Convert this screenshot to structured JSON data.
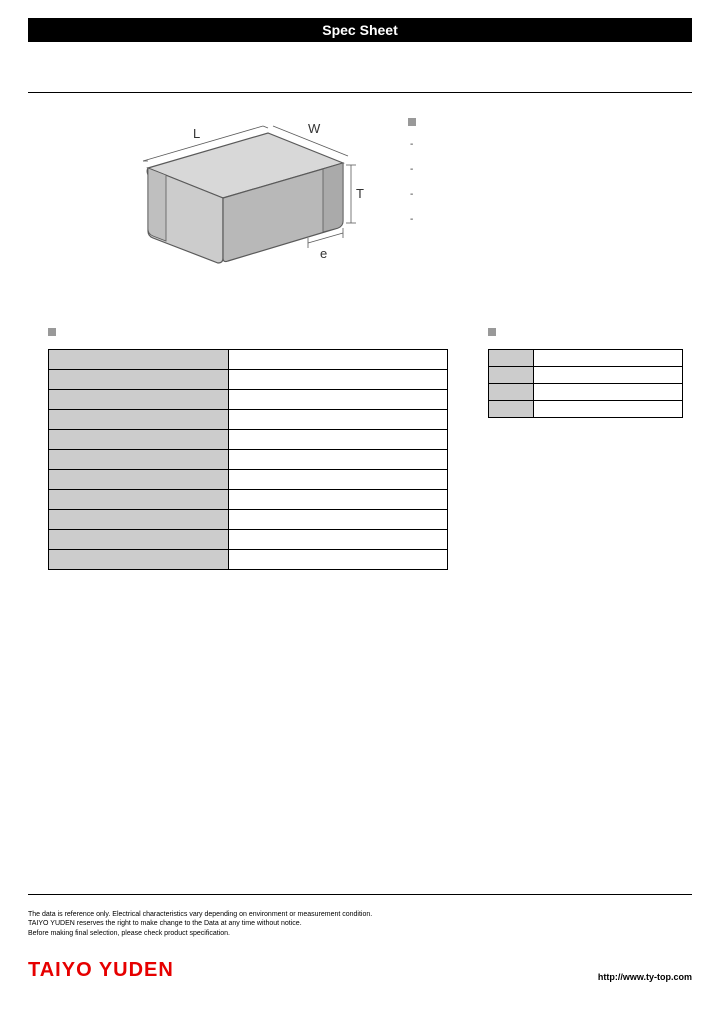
{
  "header": {
    "title": "Spec Sheet"
  },
  "diagram": {
    "labels": {
      "L": "L",
      "W": "W",
      "T": "T",
      "e": "e"
    },
    "face_color": "#cccccc",
    "edge_color": "#5a5a5a",
    "top_fill": "#d8d8d8",
    "side_fill": "#b8b8b8"
  },
  "features": {
    "items": [
      "-",
      "-",
      "-",
      "-"
    ]
  },
  "spec_table": {
    "rows": [
      {
        "label": "",
        "value": ""
      },
      {
        "label": "",
        "value": ""
      },
      {
        "label": "",
        "value": ""
      },
      {
        "label": "",
        "value": ""
      },
      {
        "label": "",
        "value": ""
      },
      {
        "label": "",
        "value": ""
      },
      {
        "label": "",
        "value": ""
      },
      {
        "label": "",
        "value": ""
      },
      {
        "label": "",
        "value": ""
      },
      {
        "label": "",
        "value": ""
      },
      {
        "label": "",
        "value": ""
      }
    ]
  },
  "dim_table": {
    "rows": [
      {
        "label": "",
        "value": ""
      },
      {
        "label": "",
        "value": ""
      },
      {
        "label": "",
        "value": ""
      },
      {
        "label": "",
        "value": ""
      }
    ]
  },
  "footer": {
    "disclaimer_line1": "The data is reference only. Electrical characteristics vary depending on environment or measurement condition.",
    "disclaimer_line2": "TAIYO YUDEN reserves the right to make change to the Data at any time without notice.",
    "disclaimer_line3": "Before making final selection, please check product specification.",
    "brand": "TAIYO YUDEN",
    "url": "http://www.ty-top.com"
  }
}
